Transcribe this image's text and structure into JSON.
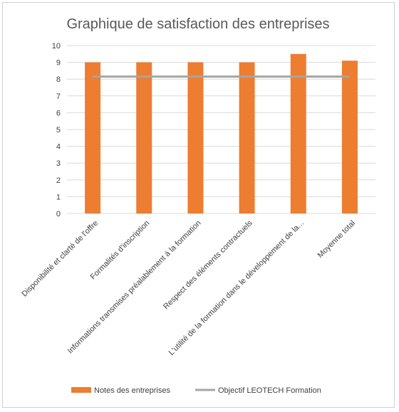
{
  "chart_data": {
    "type": "bar",
    "title": "Graphique de satisfaction des entreprises",
    "categories": [
      "Disponibilité et clarté de l'offre",
      "Formalités d'inscription",
      "Informations transmises préalablement à la formation",
      "Respect des éléments contractuels",
      "L'utilité de la formation dans le développement de la...",
      "Moyenne total"
    ],
    "series": [
      {
        "name": "Notes des entreprises",
        "type": "bar",
        "values": [
          9,
          9,
          9,
          9,
          9.5,
          9.1
        ]
      },
      {
        "name": "Objectif LEOTECH Formation",
        "type": "line",
        "values": [
          8.15,
          8.15,
          8.15,
          8.15,
          8.15,
          8.15
        ]
      }
    ],
    "ylim": [
      0,
      10
    ],
    "yticks": [
      "0",
      "1",
      "2",
      "3",
      "4",
      "5",
      "6",
      "7",
      "8",
      "9",
      "10"
    ],
    "grid": true,
    "legend": "bottom",
    "colors": {
      "bar": "#ED7D31",
      "line": "#A5A5A5",
      "grid": "#D9D9D9"
    }
  }
}
